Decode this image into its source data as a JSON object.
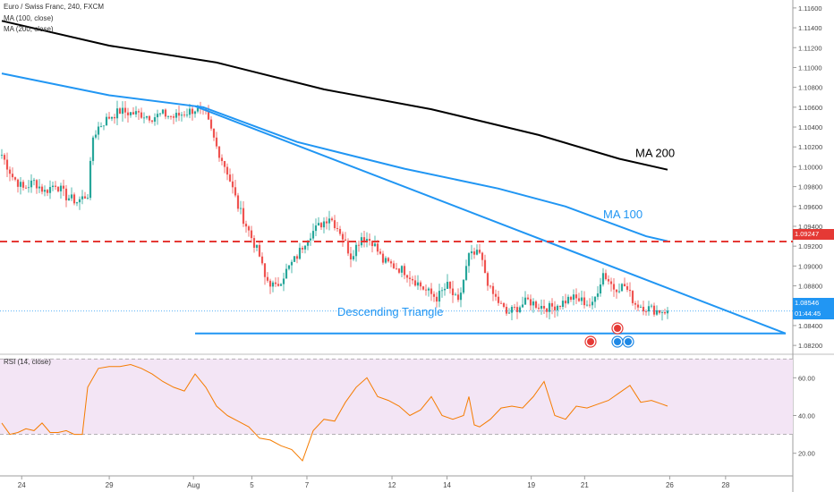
{
  "legend": {
    "symbol": "Euro / Swiss Franc, 240, FXCM",
    "ma100": "MA (100, close)",
    "ma200": "MA (200, close)",
    "rsi": "RSI (14, close)"
  },
  "labels": {
    "last_price": "1.08546",
    "countdown": "01:44:45",
    "resistance": "1.09247"
  },
  "colors": {
    "bull": "#26a69a",
    "bear": "#ef5350",
    "ma100": "#2196f3",
    "ma200": "#000000",
    "drawing": "#2196f3",
    "resistance": "#e53935",
    "rsi_line": "#f57c00",
    "rsi_band": "#f3e5f5"
  },
  "chart_data": [
    {
      "type": "candlestick",
      "title": "Euro / Swiss Franc, 240, FXCM",
      "x_ticks": [
        "24",
        "29",
        "Aug",
        "5",
        "7",
        "12",
        "14",
        "19",
        "21",
        "26",
        "28"
      ],
      "y_ticks": [
        "1.11600",
        "1.11400",
        "1.11200",
        "1.11000",
        "1.10800",
        "1.10600",
        "1.10400",
        "1.10200",
        "1.10000",
        "1.09800",
        "1.09600",
        "1.09400",
        "1.09200",
        "1.09000",
        "1.08800",
        "1.08600",
        "1.08400",
        "1.08200"
      ],
      "ylim": [
        1.0812,
        1.1168
      ],
      "close_path": [
        [
          0,
          1.1012
        ],
        [
          4,
          1.099
        ],
        [
          8,
          1.0978
        ],
        [
          12,
          1.0985
        ],
        [
          16,
          1.0975
        ],
        [
          20,
          1.0983
        ],
        [
          24,
          1.097
        ],
        [
          28,
          1.0965
        ],
        [
          32,
          1.0972
        ],
        [
          34,
          1.103
        ],
        [
          36,
          1.104
        ],
        [
          40,
          1.105
        ],
        [
          44,
          1.1056
        ],
        [
          48,
          1.1054
        ],
        [
          52,
          1.1053
        ],
        [
          56,
          1.105
        ],
        [
          60,
          1.1053
        ],
        [
          64,
          1.105
        ],
        [
          68,
          1.1054
        ],
        [
          72,
          1.1058
        ],
        [
          76,
          1.1052
        ],
        [
          80,
          1.102
        ],
        [
          84,
          1.0995
        ],
        [
          88,
          1.096
        ],
        [
          92,
          1.0935
        ],
        [
          96,
          1.091
        ],
        [
          98,
          1.0888
        ],
        [
          102,
          1.0878
        ],
        [
          106,
          1.0895
        ],
        [
          110,
          1.091
        ],
        [
          114,
          1.093
        ],
        [
          118,
          1.094
        ],
        [
          122,
          1.095
        ],
        [
          126,
          1.0935
        ],
        [
          130,
          1.091
        ],
        [
          134,
          1.093
        ],
        [
          138,
          1.0925
        ],
        [
          142,
          1.0905
        ],
        [
          146,
          1.09
        ],
        [
          150,
          1.0895
        ],
        [
          154,
          1.0885
        ],
        [
          158,
          1.0875
        ],
        [
          162,
          1.0868
        ],
        [
          166,
          1.088
        ],
        [
          170,
          1.0862
        ],
        [
          174,
          1.091
        ],
        [
          178,
          1.0912
        ],
        [
          182,
          1.0875
        ],
        [
          186,
          1.086
        ],
        [
          188,
          1.0852
        ],
        [
          192,
          1.0858
        ],
        [
          196,
          1.0865
        ],
        [
          200,
          1.086
        ],
        [
          204,
          1.0858
        ],
        [
          208,
          1.0862
        ],
        [
          212,
          1.0868
        ],
        [
          216,
          1.0865
        ],
        [
          220,
          1.086
        ],
        [
          224,
          1.0893
        ],
        [
          228,
          1.0878
        ],
        [
          232,
          1.088
        ],
        [
          236,
          1.0862
        ],
        [
          240,
          1.0858
        ],
        [
          244,
          1.0855
        ],
        [
          248,
          1.0855
        ]
      ],
      "ma100": [
        [
          0,
          1.1094
        ],
        [
          40,
          1.1072
        ],
        [
          75,
          1.106
        ],
        [
          110,
          1.1025
        ],
        [
          150,
          1.0998
        ],
        [
          185,
          1.0978
        ],
        [
          210,
          1.096
        ],
        [
          240,
          1.093
        ],
        [
          248,
          1.0925
        ]
      ],
      "ma200": [
        [
          0,
          1.1147
        ],
        [
          40,
          1.1122
        ],
        [
          80,
          1.1105
        ],
        [
          120,
          1.1078
        ],
        [
          160,
          1.1058
        ],
        [
          200,
          1.1032
        ],
        [
          230,
          1.1008
        ],
        [
          248,
          1.0997
        ]
      ],
      "annotations": [
        {
          "text": "MA 200",
          "x": 236,
          "y": 1.101
        },
        {
          "text": "MA 100",
          "x": 224,
          "y": 1.0948
        },
        {
          "text": "Descending Triangle",
          "x": 125,
          "y": 1.085
        }
      ],
      "drawings": {
        "upper_trendline": [
          [
            72,
            1.1061
          ],
          [
            292,
            1.0832
          ]
        ],
        "lower_trendline": [
          [
            72,
            1.0832
          ],
          [
            292,
            1.0832
          ]
        ],
        "resistance_level": 1.09247
      }
    },
    {
      "type": "line",
      "title": "RSI (14, close)",
      "y_ticks": [
        "60.00",
        "40.00",
        "20.00"
      ],
      "ylim": [
        8,
        72
      ],
      "bands": [
        30,
        70
      ],
      "x": [
        0,
        3,
        6,
        9,
        12,
        15,
        18,
        21,
        24,
        27,
        30,
        32,
        34,
        36,
        40,
        44,
        48,
        52,
        56,
        60,
        64,
        68,
        72,
        76,
        80,
        84,
        88,
        92,
        96,
        100,
        104,
        108,
        112,
        116,
        120,
        124,
        128,
        132,
        136,
        140,
        144,
        148,
        152,
        156,
        160,
        164,
        168,
        172,
        174,
        176,
        178,
        182,
        186,
        190,
        194,
        198,
        202,
        206,
        210,
        214,
        218,
        222,
        226,
        230,
        234,
        238,
        242,
        246,
        248
      ],
      "values": [
        36,
        30,
        31,
        33,
        32,
        36,
        31,
        31,
        32,
        30,
        30,
        55,
        60,
        65,
        66,
        66,
        67,
        65,
        62,
        58,
        55,
        53,
        62,
        55,
        45,
        40,
        37,
        34,
        28,
        27,
        24,
        22,
        16,
        32,
        38,
        37,
        47,
        55,
        60,
        50,
        48,
        45,
        40,
        43,
        50,
        40,
        38,
        40,
        50,
        35,
        34,
        38,
        44,
        45,
        44,
        50,
        58,
        40,
        38,
        45,
        44,
        46,
        48,
        52,
        56,
        47,
        48,
        46,
        45
      ]
    }
  ]
}
